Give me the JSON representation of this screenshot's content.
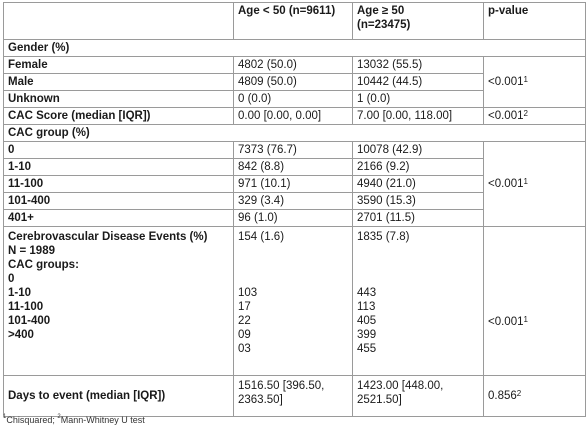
{
  "header": {
    "col1": "",
    "col2": "Age < 50 (n=9611)",
    "col3_line1": "Age ≥ 50",
    "col3_line2": "(n=23475)",
    "col4": "p-value"
  },
  "gender": {
    "label": "Gender (%)",
    "rows": [
      {
        "label": "Female",
        "a": "4802 (50.0)",
        "b": "13032 (55.5)"
      },
      {
        "label": "Male",
        "a": "4809 (50.0)",
        "b": "10442 (44.5)"
      },
      {
        "label": "Unknown",
        "a": "0 (0.0)",
        "b": "1 (0.0)"
      }
    ],
    "p": "<0.001",
    "p_sup": "1"
  },
  "cac_score": {
    "label": "CAC Score (median [IQR])",
    "a": "0.00 [0.00, 0.00]",
    "b": "7.00 [0.00, 118.00]",
    "p": "<0.001",
    "p_sup": "2"
  },
  "cac_group": {
    "label": "CAC group (%)",
    "rows": [
      {
        "label": "0",
        "a": "7373 (76.7)",
        "b": "10078 (42.9)"
      },
      {
        "label": "1-10",
        "a": "842 (8.8)",
        "b": "2166 (9.2)"
      },
      {
        "label": "11-100",
        "a": "971 (10.1)",
        "b": "4940 (21.0)"
      },
      {
        "label": "101-400",
        "a": "329 (3.4)",
        "b": "3590 (15.3)"
      },
      {
        "label": "401+",
        "a": "96 (1.0)",
        "b": "2701 (11.5)"
      }
    ],
    "p": "<0.001",
    "p_sup": "1"
  },
  "cerebro": {
    "title": "Cerebrovascular Disease Events (%)",
    "n": "N = 1989",
    "sub": "CAC groups:",
    "total_a": "154 (1.6)",
    "total_b": "1835 (7.8)",
    "rows": [
      {
        "label": "0",
        "a": "103",
        "b": "443"
      },
      {
        "label": "1-10",
        "a": "17",
        "b": "113"
      },
      {
        "label": "11-100",
        "a": "22",
        "b": "405"
      },
      {
        "label": "101-400",
        "a": "09",
        "b": "399"
      },
      {
        "label": ">400",
        "a": "03",
        "b": "455"
      }
    ],
    "p": "<0.001",
    "p_sup": "1"
  },
  "days": {
    "label": "Days to event (median [IQR])",
    "a_line1": "1516.50 [396.50,",
    "a_line2": "2363.50]",
    "b_line1": "1423.00 [448.00,",
    "b_line2": "2521.50]",
    "p": "0.856",
    "p_sup": "2"
  },
  "footnote": {
    "sup1": "1",
    "text1": "Chisquared; ",
    "sup2": "2",
    "text2": "Mann-Whitney U test"
  }
}
